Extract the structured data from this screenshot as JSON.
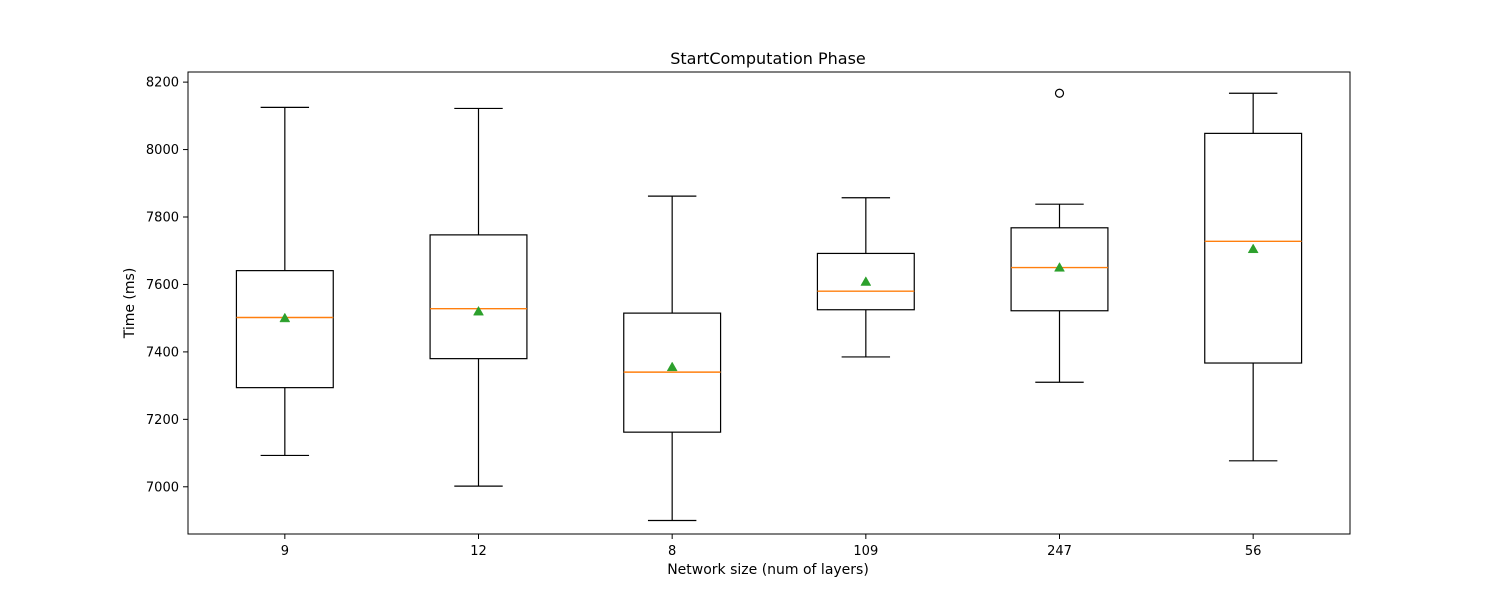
{
  "chart_data": {
    "type": "box",
    "title": "StartComputation Phase",
    "xlabel": "Network size (num of layers)",
    "ylabel": "Time (ms)",
    "categories": [
      "9",
      "12",
      "8",
      "109",
      "247",
      "56"
    ],
    "ylim": [
      6860,
      8230
    ],
    "yticks": [
      7000,
      7200,
      7400,
      7600,
      7800,
      8000,
      8200
    ],
    "grid": false,
    "boxes": [
      {
        "whisker_low": 7093,
        "q1": 7294,
        "median": 7502,
        "q3": 7641,
        "whisker_high": 8125,
        "mean": 7500,
        "outliers": []
      },
      {
        "whisker_low": 7002,
        "q1": 7380,
        "median": 7528,
        "q3": 7747,
        "whisker_high": 8122,
        "mean": 7520,
        "outliers": []
      },
      {
        "whisker_low": 6900,
        "q1": 7162,
        "median": 7340,
        "q3": 7515,
        "whisker_high": 7862,
        "mean": 7355,
        "outliers": []
      },
      {
        "whisker_low": 7385,
        "q1": 7525,
        "median": 7580,
        "q3": 7692,
        "whisker_high": 7857,
        "mean": 7608,
        "outliers": []
      },
      {
        "whisker_low": 7310,
        "q1": 7522,
        "median": 7650,
        "q3": 7768,
        "whisker_high": 7838,
        "mean": 7650,
        "outliers": [
          8167
        ]
      },
      {
        "whisker_low": 7077,
        "q1": 7367,
        "median": 7728,
        "q3": 8048,
        "whisker_high": 8167,
        "mean": 7705,
        "outliers": []
      }
    ],
    "colors": {
      "box": "#000000",
      "median": "#ff7f0e",
      "mean": "#2ca02c",
      "outlier": "#000000"
    }
  }
}
